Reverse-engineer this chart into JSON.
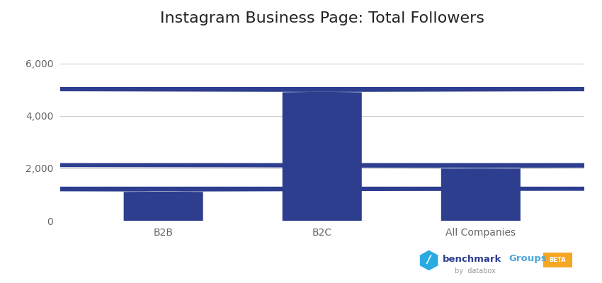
{
  "title": "Instagram Business Page: Total Followers",
  "categories": [
    "B2B",
    "B2C",
    "All Companies"
  ],
  "values": [
    1300,
    5100,
    2200
  ],
  "bar_color": "#2d3e8e",
  "ylim": [
    0,
    6800
  ],
  "yticks": [
    0,
    2000,
    4000,
    6000
  ],
  "ytick_labels": [
    "0",
    "2,000",
    "4,000",
    "6,000"
  ],
  "title_fontsize": 16,
  "tick_fontsize": 10,
  "background_color": "#ffffff",
  "bar_width": 0.5,
  "grid_color": "#cccccc",
  "watermark_benchmark_color": "#2d3e8e",
  "watermark_groups_color": "#4da6d8",
  "watermark_beta_color": "#f5a623",
  "watermark_databox_color": "#999999"
}
